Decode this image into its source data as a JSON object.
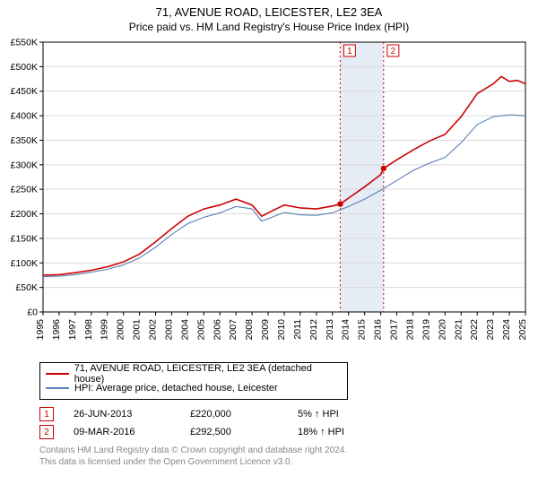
{
  "title": "71, AVENUE ROAD, LEICESTER, LE2 3EA",
  "subtitle": "Price paid vs. HM Land Registry's House Price Index (HPI)",
  "chart": {
    "type": "line",
    "background_color": "#ffffff",
    "plot_border_color": "#000000",
    "grid_color": "#d9d9d9",
    "highlight_band_color": "#e6ecf5",
    "y": {
      "min": 0,
      "max": 550000,
      "step": 50000,
      "ticks": [
        "£0",
        "£50K",
        "£100K",
        "£150K",
        "£200K",
        "£250K",
        "£300K",
        "£350K",
        "£400K",
        "£450K",
        "£500K",
        "£550K"
      ],
      "label_fontsize": 10.5
    },
    "x": {
      "min": 1995,
      "max": 2025,
      "step": 1,
      "ticks": [
        "1995",
        "1996",
        "1997",
        "1998",
        "1999",
        "2000",
        "2001",
        "2002",
        "2003",
        "2004",
        "2005",
        "2006",
        "2007",
        "2008",
        "2009",
        "2010",
        "2011",
        "2012",
        "2013",
        "2014",
        "2015",
        "2016",
        "2017",
        "2018",
        "2019",
        "2020",
        "2021",
        "2022",
        "2023",
        "2024",
        "2025"
      ],
      "label_fontsize": 10.5
    },
    "series": [
      {
        "name": "71, AVENUE ROAD, LEICESTER, LE2 3EA (detached house)",
        "color": "#cc0000",
        "width": 1.6,
        "points": [
          [
            1995,
            75000
          ],
          [
            1996,
            76000
          ],
          [
            1997,
            80000
          ],
          [
            1998,
            85000
          ],
          [
            1999,
            92000
          ],
          [
            2000,
            102000
          ],
          [
            2001,
            118000
          ],
          [
            2002,
            143000
          ],
          [
            2003,
            170000
          ],
          [
            2004,
            195000
          ],
          [
            2005,
            210000
          ],
          [
            2006,
            218000
          ],
          [
            2007,
            230000
          ],
          [
            2008,
            218000
          ],
          [
            2008.6,
            195000
          ],
          [
            2009,
            202000
          ],
          [
            2010,
            218000
          ],
          [
            2011,
            212000
          ],
          [
            2012,
            210000
          ],
          [
            2013,
            216000
          ],
          [
            2013.48,
            220000
          ],
          [
            2014,
            232000
          ],
          [
            2015,
            255000
          ],
          [
            2016,
            280000
          ],
          [
            2016.18,
            292500
          ],
          [
            2017,
            310000
          ],
          [
            2018,
            330000
          ],
          [
            2019,
            348000
          ],
          [
            2020,
            362000
          ],
          [
            2021,
            398000
          ],
          [
            2022,
            445000
          ],
          [
            2023,
            465000
          ],
          [
            2023.5,
            480000
          ],
          [
            2024,
            470000
          ],
          [
            2024.5,
            472000
          ],
          [
            2025,
            465000
          ]
        ]
      },
      {
        "name": "HPI: Average price, detached house, Leicester",
        "color": "#5a7fb5",
        "width": 1.1,
        "points": [
          [
            1995,
            72000
          ],
          [
            1996,
            73000
          ],
          [
            1997,
            76000
          ],
          [
            1998,
            81000
          ],
          [
            1999,
            87000
          ],
          [
            2000,
            96000
          ],
          [
            2001,
            110000
          ],
          [
            2002,
            132000
          ],
          [
            2003,
            158000
          ],
          [
            2004,
            180000
          ],
          [
            2005,
            193000
          ],
          [
            2006,
            202000
          ],
          [
            2007,
            215000
          ],
          [
            2008,
            210000
          ],
          [
            2008.6,
            185000
          ],
          [
            2009,
            190000
          ],
          [
            2010,
            203000
          ],
          [
            2011,
            198000
          ],
          [
            2012,
            197000
          ],
          [
            2013,
            202000
          ],
          [
            2014,
            215000
          ],
          [
            2015,
            230000
          ],
          [
            2016,
            248000
          ],
          [
            2017,
            268000
          ],
          [
            2018,
            288000
          ],
          [
            2019,
            303000
          ],
          [
            2020,
            315000
          ],
          [
            2021,
            345000
          ],
          [
            2022,
            382000
          ],
          [
            2023,
            398000
          ],
          [
            2024,
            402000
          ],
          [
            2025,
            400000
          ]
        ]
      }
    ],
    "markers": [
      {
        "label": "1",
        "x": 2013.48,
        "y": 220000,
        "line_color": "#cc0000",
        "line_dash": "2,3"
      },
      {
        "label": "2",
        "x": 2016.18,
        "y": 292500,
        "line_color": "#cc0000",
        "line_dash": "2,3"
      }
    ],
    "marker_dot_color": "#cc0000",
    "marker_dot_radius": 3.2,
    "legend_border_color": "#000000"
  },
  "legend": {
    "items": [
      {
        "color": "#cc0000",
        "label": "71, AVENUE ROAD, LEICESTER, LE2 3EA (detached house)"
      },
      {
        "color": "#5a7fb5",
        "label": "HPI: Average price, detached house, Leicester"
      }
    ]
  },
  "transactions": [
    {
      "label": "1",
      "date": "26-JUN-2013",
      "price": "£220,000",
      "pct": "5% ↑ HPI"
    },
    {
      "label": "2",
      "date": "09-MAR-2016",
      "price": "£292,500",
      "pct": "18% ↑ HPI"
    }
  ],
  "attribution": {
    "line1": "Contains HM Land Registry data © Crown copyright and database right 2024.",
    "line2": "This data is licensed under the Open Government Licence v3.0."
  }
}
